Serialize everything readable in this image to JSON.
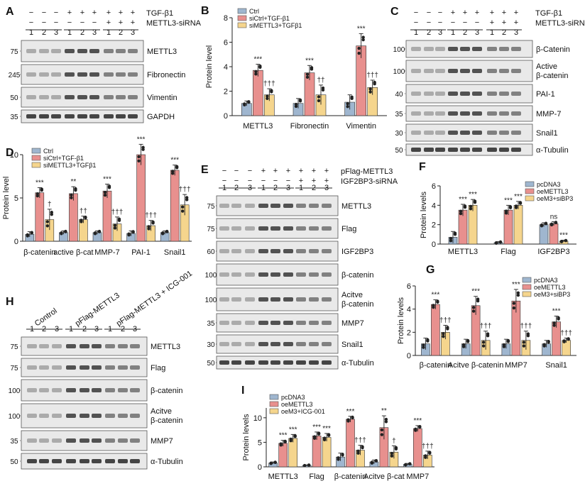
{
  "panels": {
    "A": {
      "letter": "A",
      "treatments": [
        "TGF-β1",
        "METTL3-siRNA"
      ],
      "signs": [
        [
          "−",
          "−",
          "−",
          "+",
          "+",
          "+",
          "+",
          "+",
          "+"
        ],
        [
          "−",
          "−",
          "−",
          "−",
          "−",
          "−",
          "+",
          "+",
          "+"
        ]
      ],
      "lanes": [
        "1",
        "2",
        "3",
        "1",
        "2",
        "3",
        "1",
        "2",
        "3"
      ],
      "blots": [
        {
          "marker": "75",
          "label": "METTL3"
        },
        {
          "marker": "245",
          "label": "Fibronectin"
        },
        {
          "marker": "50",
          "label": "Vimentin"
        },
        {
          "marker": "35",
          "label": "GAPDH"
        }
      ]
    },
    "C": {
      "letter": "C",
      "treatments": [
        "TGF-β1",
        "METTL3-siRNA"
      ],
      "signs": [
        [
          "−",
          "−",
          "−",
          "+",
          "+",
          "+",
          "+",
          "+",
          "+"
        ],
        [
          "−",
          "−",
          "−",
          "−",
          "−",
          "−",
          "+",
          "+",
          "+"
        ]
      ],
      "lanes": [
        "1",
        "2",
        "3",
        "1",
        "2",
        "3",
        "1",
        "2",
        "3"
      ],
      "blots": [
        {
          "marker": "100",
          "label": "β-Catenin"
        },
        {
          "marker": "100",
          "label": "Active β-catenin"
        },
        {
          "marker": "40",
          "label": "PAI-1"
        },
        {
          "marker": "35",
          "label": "MMP-7"
        },
        {
          "marker": "30",
          "label": "Snail1"
        },
        {
          "marker": "50",
          "label": "α-Tubulin"
        }
      ]
    },
    "E": {
      "letter": "E",
      "treatments": [
        "pFlag-METTL3",
        "IGF2BP3-siRNA"
      ],
      "signs": [
        [
          "−",
          "−",
          "−",
          "+",
          "+",
          "+",
          "+",
          "+",
          "+"
        ],
        [
          "−",
          "−",
          "−",
          "−",
          "−",
          "−",
          "+",
          "+",
          "+"
        ]
      ],
      "lanes": [
        "1",
        "2",
        "3",
        "1",
        "2",
        "3",
        "1",
        "2",
        "3"
      ],
      "blots": [
        {
          "marker": "75",
          "label": "METTL3"
        },
        {
          "marker": "75",
          "label": "Flag"
        },
        {
          "marker": "60",
          "label": "IGF2BP3"
        },
        {
          "marker": "100",
          "label": "β-catenin"
        },
        {
          "marker": "100",
          "label": "Acitve β-catenin"
        },
        {
          "marker": "35",
          "label": "MMP7"
        },
        {
          "marker": "30",
          "label": "Snail1"
        },
        {
          "marker": "50",
          "label": "α-Tubulin"
        }
      ]
    },
    "H": {
      "letter": "H",
      "groups": [
        "Control",
        "pFlag-METTL3",
        "pFlag-METTL3 + ICG-001"
      ],
      "lanes": [
        "1",
        "2",
        "3",
        "1",
        "2",
        "3",
        "1",
        "2",
        "3"
      ],
      "blots": [
        {
          "marker": "75",
          "label": "METTL3"
        },
        {
          "marker": "75",
          "label": "Flag"
        },
        {
          "marker": "100",
          "label": "β-catenin"
        },
        {
          "marker": "100",
          "label": "Acitve β-catenin"
        },
        {
          "marker": "35",
          "label": "MMP7"
        },
        {
          "marker": "50",
          "label": "α-Tubulin"
        }
      ]
    }
  },
  "colors": {
    "blue": "#9fb6cf",
    "red": "#e8908e",
    "yellow": "#f5d58d",
    "sig": "#222222"
  },
  "chart_data": [
    {
      "panel": "B",
      "type": "bar",
      "ylabel": "Protein level",
      "ylim": [
        0,
        8
      ],
      "yticks": [
        "0",
        "2",
        "4",
        "6",
        "8"
      ],
      "legend": [
        "Ctrl",
        "siCtrl+TGF-β1",
        "siMETTL3+TGFβ1"
      ],
      "categories": [
        "METTL3",
        "Fibronectin",
        "Vimentin"
      ],
      "series": [
        {
          "name": "Ctrl",
          "values": [
            1.0,
            1.0,
            1.1
          ],
          "err": [
            0.2,
            0.4,
            0.6
          ]
        },
        {
          "name": "siCtrl+TGF-β1",
          "values": [
            3.7,
            3.5,
            5.7
          ],
          "err": [
            0.5,
            0.6,
            1.0
          ]
        },
        {
          "name": "siMETTL3+TGFβ1",
          "values": [
            1.7,
            1.7,
            2.3
          ],
          "err": [
            0.5,
            0.8,
            0.6
          ]
        }
      ],
      "annotations": [
        [
          "",
          "",
          ""
        ],
        [
          "***",
          "***",
          "***"
        ],
        [
          "†††",
          "††",
          "†††"
        ]
      ]
    },
    {
      "panel": "D",
      "type": "bar",
      "ylabel": "Protein level",
      "ylim": [
        0,
        10
      ],
      "yticks": [
        "0",
        "5",
        "10"
      ],
      "legend": [
        "Ctrl",
        "siCtrl+TGF-β1",
        "siMETTL3+TGFβ1"
      ],
      "categories": [
        "β-catenin",
        "active β-cat",
        "MMP-7",
        "PAI-1",
        "Snail1"
      ],
      "series": [
        {
          "name": "Ctrl",
          "values": [
            0.8,
            1.0,
            1.0,
            0.9,
            1.0
          ],
          "err": [
            0.3,
            0.2,
            0.2,
            0.3,
            0.2
          ]
        },
        {
          "name": "siCtrl+TGF-β1",
          "values": [
            5.6,
            5.5,
            5.8,
            10.0,
            8.2
          ],
          "err": [
            0.6,
            0.8,
            0.8,
            1.2,
            0.6
          ]
        },
        {
          "name": "siMETTL3+TGFβ1",
          "values": [
            2.5,
            2.5,
            2.0,
            1.8,
            4.2
          ],
          "err": [
            1.2,
            0.4,
            0.8,
            0.6,
            1.2
          ]
        }
      ],
      "annotations": [
        [
          "",
          "",
          "",
          "",
          ""
        ],
        [
          "***",
          "**",
          "***",
          "***",
          "***"
        ],
        [
          "†",
          "††",
          "†††",
          "†††",
          "†††"
        ]
      ]
    },
    {
      "panel": "F",
      "type": "bar",
      "ylabel": "Protein levels",
      "ylim": [
        0,
        6
      ],
      "yticks": [
        "0",
        "2",
        "4",
        "6"
      ],
      "legend": [
        "pcDNA3",
        "oeMETTL3",
        "oeM3+siBP3"
      ],
      "categories": [
        "METTL3",
        "Flag",
        "IGF2BP3"
      ],
      "series": [
        {
          "name": "pcDNA3",
          "values": [
            0.7,
            0.15,
            2.0
          ],
          "err": [
            0.6,
            0.1,
            0.2
          ]
        },
        {
          "name": "oeMETTL3",
          "values": [
            3.5,
            3.5,
            2.1
          ],
          "err": [
            0.6,
            0.5,
            0.2
          ]
        },
        {
          "name": "oeM3+siBP3",
          "values": [
            4.0,
            4.0,
            0.3
          ],
          "err": [
            0.6,
            0.4,
            0.1
          ]
        }
      ],
      "annotations": [
        [
          "",
          "",
          ""
        ],
        [
          "***",
          "***",
          "ns"
        ],
        [
          "***",
          "***",
          "***"
        ]
      ]
    },
    {
      "panel": "G",
      "type": "bar",
      "ylabel": "Protein levels",
      "ylim": [
        0,
        6
      ],
      "yticks": [
        "0",
        "2",
        "4",
        "6"
      ],
      "legend": [
        "pcDNA3",
        "oeMETTL3",
        "oeM3+siBP3"
      ],
      "categories": [
        "β-catenin",
        "Acitve β-catenin",
        "MMP7",
        "Snail1"
      ],
      "series": [
        {
          "name": "pcDNA3",
          "values": [
            1.0,
            1.0,
            1.0,
            1.0
          ],
          "err": [
            0.5,
            0.4,
            0.4,
            0.3
          ]
        },
        {
          "name": "oeMETTL3",
          "values": [
            4.4,
            4.3,
            4.7,
            2.9
          ],
          "err": [
            0.4,
            0.8,
            1.0,
            0.5
          ]
        },
        {
          "name": "oeM3+siBP3",
          "values": [
            2.0,
            1.3,
            1.3,
            1.3
          ],
          "err": [
            0.6,
            0.8,
            0.8,
            0.2
          ]
        }
      ],
      "annotations": [
        [
          "",
          "",
          "",
          ""
        ],
        [
          "***",
          "***",
          "***",
          "***"
        ],
        [
          "†††",
          "†††",
          "†††",
          "†††"
        ]
      ]
    },
    {
      "panel": "I",
      "type": "bar",
      "ylabel": "Protein levels",
      "ylim": [
        0,
        12
      ],
      "yticks": [
        "0",
        "5",
        "10"
      ],
      "legend": [
        "pcDNA3",
        "oeMETTL3",
        "oeM3+ICG-001"
      ],
      "categories": [
        "METTL3",
        "Flag",
        "β-catenin",
        "Acitve β-cat",
        "MMP7"
      ],
      "series": [
        {
          "name": "pcDNA3",
          "values": [
            0.8,
            0.3,
            2.0,
            1.0,
            0.5
          ],
          "err": [
            0.2,
            0.1,
            0.8,
            0.4,
            0.2
          ]
        },
        {
          "name": "oeMETTL3",
          "values": [
            4.8,
            6.3,
            9.7,
            8.0,
            7.8
          ],
          "err": [
            0.6,
            0.8,
            0.6,
            2.4,
            0.6
          ]
        },
        {
          "name": "oeM3+ICG-001",
          "values": [
            5.8,
            6.0,
            3.4,
            3.0,
            2.4
          ],
          "err": [
            0.8,
            0.8,
            1.0,
            1.3,
            0.8
          ]
        }
      ],
      "annotations": [
        [
          "",
          "",
          "",
          "",
          ""
        ],
        [
          "***",
          "***",
          "***",
          "**",
          "***"
        ],
        [
          "***",
          "***",
          "†††",
          "†",
          "†††"
        ]
      ]
    }
  ]
}
